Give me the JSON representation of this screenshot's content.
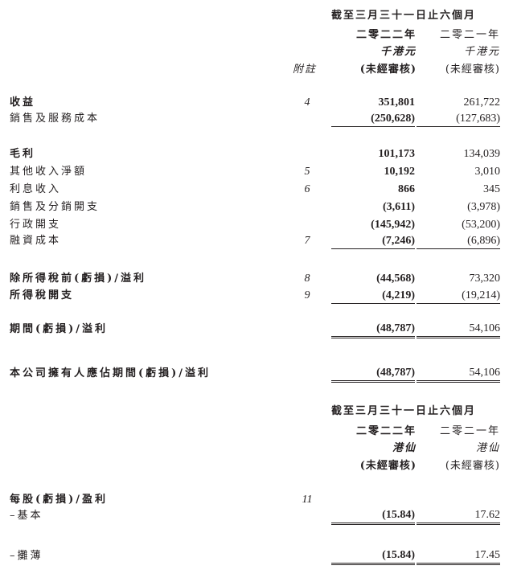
{
  "header1": {
    "period": "截至三月三十一日止六個月",
    "year1": "二零二二年",
    "year2": "二零二一年",
    "unit1": "千港元",
    "unit2": "千港元",
    "note_label": "附註",
    "audit1": "(未經審核)",
    "audit2": "(未經審核)"
  },
  "rows": [
    {
      "label": "收益",
      "note": "4",
      "v1": "351,801",
      "v2": "261,722",
      "bold": true
    },
    {
      "label": "銷售及服務成本",
      "note": "",
      "v1": "(250,628)",
      "v2": "(127,683)"
    },
    {
      "label": "毛利",
      "note": "",
      "v1": "101,173",
      "v2": "134,039",
      "bold": true
    },
    {
      "label": "其他收入淨額",
      "note": "5",
      "v1": "10,192",
      "v2": "3,010"
    },
    {
      "label": "利息收入",
      "note": "6",
      "v1": "866",
      "v2": "345"
    },
    {
      "label": "銷售及分銷開支",
      "note": "",
      "v1": "(3,611)",
      "v2": "(3,978)"
    },
    {
      "label": "行政開支",
      "note": "",
      "v1": "(145,942)",
      "v2": "(53,200)"
    },
    {
      "label": "融資成本",
      "note": "7",
      "v1": "(7,246)",
      "v2": "(6,896)"
    },
    {
      "label": "除所得稅前(虧損)/溢利",
      "note": "8",
      "v1": "(44,568)",
      "v2": "73,320",
      "bold": true
    },
    {
      "label": "所得稅開支",
      "note": "9",
      "v1": "(4,219)",
      "v2": "(19,214)",
      "bold": true
    },
    {
      "label": "期間(虧損)/溢利",
      "note": "",
      "v1": "(48,787)",
      "v2": "54,106",
      "bold": true
    },
    {
      "label": "本公司擁有人應佔期間(虧損)/溢利",
      "note": "",
      "v1": "(48,787)",
      "v2": "54,106",
      "bold": true
    }
  ],
  "header2": {
    "period": "截至三月三十一日止六個月",
    "year1": "二零二二年",
    "year2": "二零二一年",
    "unit1": "港仙",
    "unit2": "港仙",
    "audit1": "(未經審核)",
    "audit2": "(未經審核)"
  },
  "eps": [
    {
      "label": "每股(虧損)/盈利",
      "note": "11",
      "v1": "",
      "v2": "",
      "bold": true
    },
    {
      "label": "–基本",
      "note": "",
      "v1": "(15.84)",
      "v2": "17.62"
    },
    {
      "label": "–攤薄",
      "note": "",
      "v1": "(15.84)",
      "v2": "17.45"
    }
  ]
}
